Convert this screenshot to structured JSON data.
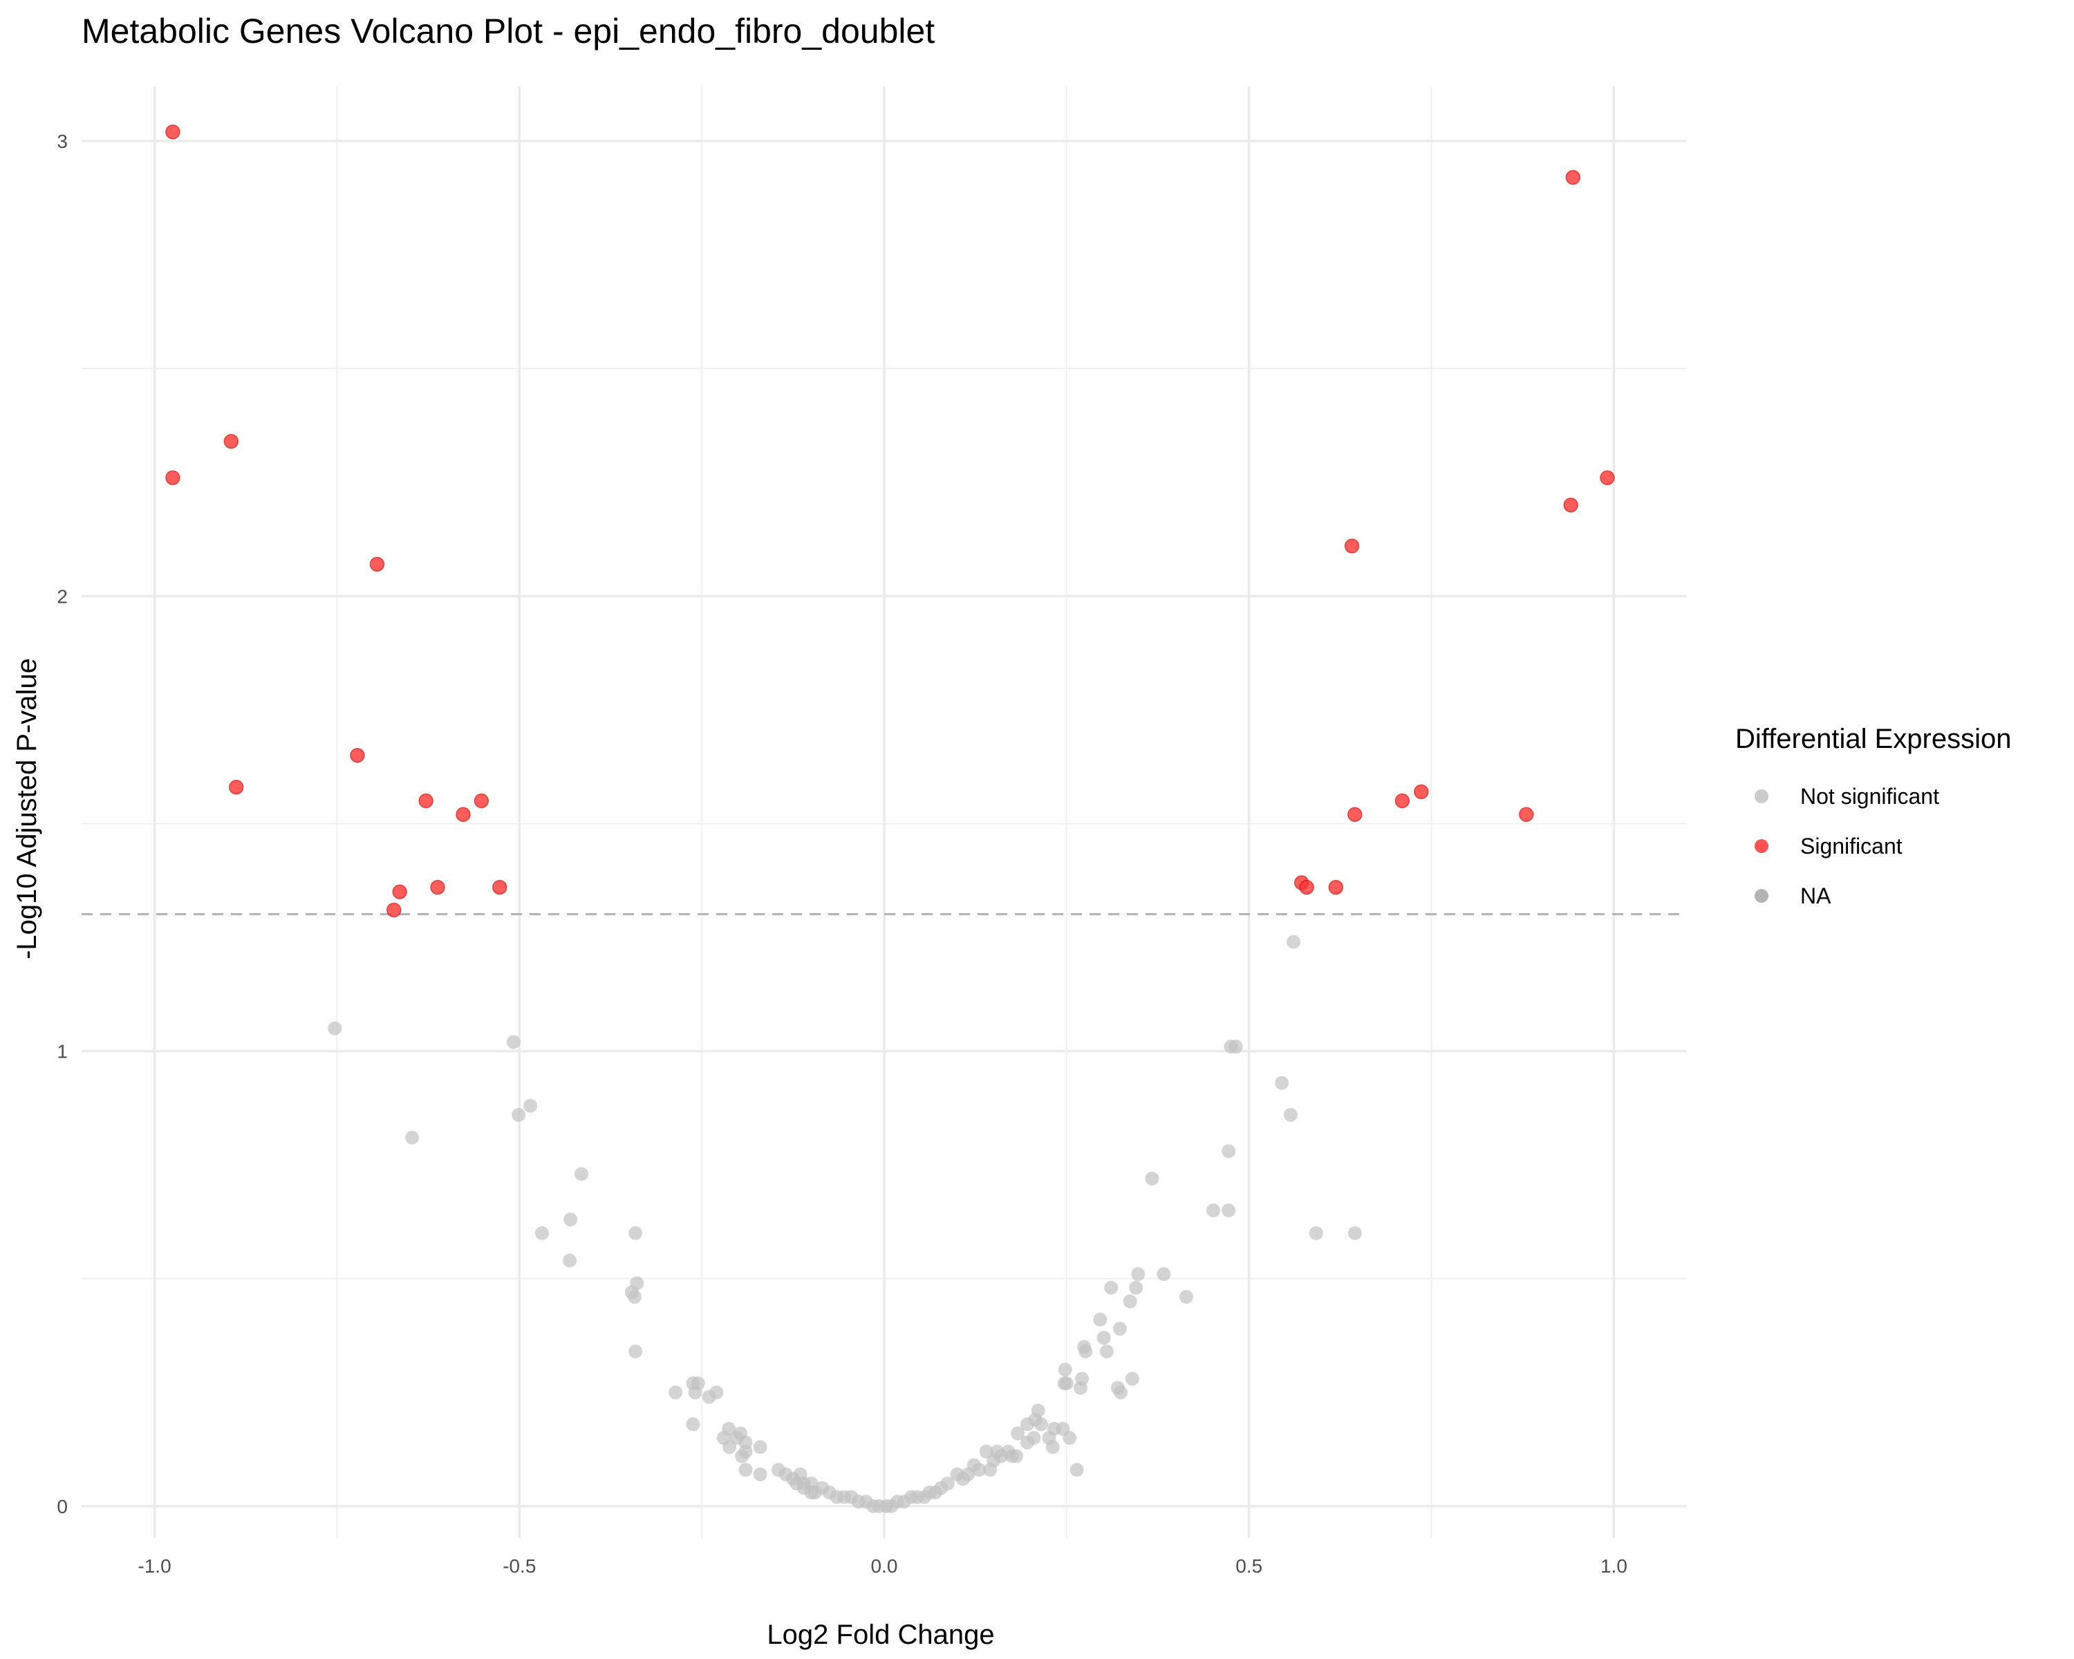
{
  "chart_data": {
    "type": "scatter",
    "title": "Metabolic Genes Volcano Plot - epi_endo_fibro_doublet",
    "xlabel": "Log2 Fold Change",
    "ylabel": "-Log10 Adjusted P-value",
    "xlim": [
      -1.1,
      1.1
    ],
    "ylim": [
      -0.07,
      3.12
    ],
    "x_ticks": [
      {
        "value": -1.0,
        "label": "-1.0"
      },
      {
        "value": -0.5,
        "label": "-0.5"
      },
      {
        "value": 0.0,
        "label": "0.0"
      },
      {
        "value": 0.5,
        "label": "0.5"
      },
      {
        "value": 1.0,
        "label": "1.0"
      }
    ],
    "y_ticks": [
      {
        "value": 0,
        "label": "0"
      },
      {
        "value": 1,
        "label": "1"
      },
      {
        "value": 2,
        "label": "2"
      },
      {
        "value": 3,
        "label": "3"
      }
    ],
    "grid": true,
    "threshold_line": {
      "y": 1.301,
      "style": "dashed",
      "color": "#b3b3b3"
    },
    "legend": {
      "title": "Differential Expression",
      "placement": "right",
      "entries": [
        {
          "label": "Not significant",
          "color": "#c2c2c2"
        },
        {
          "label": "Significant",
          "color": "#ff3333"
        },
        {
          "label": "NA",
          "color": "#a6a6a6"
        }
      ]
    },
    "series": [
      {
        "name": "Significant",
        "color": "#ff3333",
        "points": [
          {
            "x": -0.975,
            "y": 3.02
          },
          {
            "x": -0.975,
            "y": 2.26
          },
          {
            "x": -0.895,
            "y": 2.34
          },
          {
            "x": -0.888,
            "y": 1.58
          },
          {
            "x": -0.695,
            "y": 2.07
          },
          {
            "x": -0.722,
            "y": 1.65
          },
          {
            "x": -0.628,
            "y": 1.55
          },
          {
            "x": -0.577,
            "y": 1.52
          },
          {
            "x": -0.552,
            "y": 1.55
          },
          {
            "x": -0.612,
            "y": 1.36
          },
          {
            "x": -0.527,
            "y": 1.36
          },
          {
            "x": -0.664,
            "y": 1.35
          },
          {
            "x": -0.672,
            "y": 1.31
          },
          {
            "x": 0.944,
            "y": 2.92
          },
          {
            "x": 0.991,
            "y": 2.26
          },
          {
            "x": 0.941,
            "y": 2.2
          },
          {
            "x": 0.641,
            "y": 2.11
          },
          {
            "x": 0.736,
            "y": 1.57
          },
          {
            "x": 0.71,
            "y": 1.55
          },
          {
            "x": 0.645,
            "y": 1.52
          },
          {
            "x": 0.88,
            "y": 1.52
          },
          {
            "x": 0.572,
            "y": 1.37
          },
          {
            "x": 0.579,
            "y": 1.36
          },
          {
            "x": 0.619,
            "y": 1.36
          }
        ]
      },
      {
        "name": "Not significant",
        "color": "#c2c2c2",
        "points": [
          {
            "x": -0.753,
            "y": 1.05
          },
          {
            "x": -0.647,
            "y": 0.81
          },
          {
            "x": -0.508,
            "y": 1.02
          },
          {
            "x": -0.501,
            "y": 0.86
          },
          {
            "x": -0.485,
            "y": 0.88
          },
          {
            "x": -0.415,
            "y": 0.73
          },
          {
            "x": -0.43,
            "y": 0.63
          },
          {
            "x": -0.469,
            "y": 0.6
          },
          {
            "x": -0.431,
            "y": 0.54
          },
          {
            "x": -0.341,
            "y": 0.6
          },
          {
            "x": -0.339,
            "y": 0.49
          },
          {
            "x": -0.346,
            "y": 0.47
          },
          {
            "x": -0.342,
            "y": 0.46
          },
          {
            "x": -0.341,
            "y": 0.34
          },
          {
            "x": 0.561,
            "y": 1.24
          },
          {
            "x": 0.475,
            "y": 1.01
          },
          {
            "x": 0.482,
            "y": 1.01
          },
          {
            "x": 0.545,
            "y": 0.93
          },
          {
            "x": 0.557,
            "y": 0.86
          },
          {
            "x": 0.472,
            "y": 0.78
          },
          {
            "x": 0.367,
            "y": 0.72
          },
          {
            "x": 0.451,
            "y": 0.65
          },
          {
            "x": 0.472,
            "y": 0.65
          },
          {
            "x": 0.592,
            "y": 0.6
          },
          {
            "x": 0.645,
            "y": 0.6
          },
          {
            "x": 0.383,
            "y": 0.51
          },
          {
            "x": 0.348,
            "y": 0.51
          },
          {
            "x": 0.345,
            "y": 0.48
          },
          {
            "x": 0.311,
            "y": 0.48
          },
          {
            "x": 0.414,
            "y": 0.46
          },
          {
            "x": 0.337,
            "y": 0.45
          },
          {
            "x": 0.296,
            "y": 0.41
          },
          {
            "x": 0.323,
            "y": 0.39
          },
          {
            "x": 0.301,
            "y": 0.37
          },
          {
            "x": 0.274,
            "y": 0.35
          },
          {
            "x": 0.276,
            "y": 0.34
          },
          {
            "x": 0.305,
            "y": 0.34
          },
          {
            "x": 0.248,
            "y": 0.3
          },
          {
            "x": 0.34,
            "y": 0.28
          },
          {
            "x": 0.271,
            "y": 0.28
          },
          {
            "x": 0.247,
            "y": 0.27
          },
          {
            "x": 0.25,
            "y": 0.27
          },
          {
            "x": 0.269,
            "y": 0.26
          },
          {
            "x": 0.32,
            "y": 0.26
          },
          {
            "x": 0.324,
            "y": 0.25
          },
          {
            "x": 0.211,
            "y": 0.21
          },
          {
            "x": 0.207,
            "y": 0.19
          },
          {
            "x": 0.196,
            "y": 0.18
          },
          {
            "x": 0.215,
            "y": 0.18
          },
          {
            "x": 0.233,
            "y": 0.17
          },
          {
            "x": 0.245,
            "y": 0.17
          },
          {
            "x": 0.183,
            "y": 0.16
          },
          {
            "x": 0.205,
            "y": 0.15
          },
          {
            "x": 0.226,
            "y": 0.15
          },
          {
            "x": 0.254,
            "y": 0.15
          },
          {
            "x": 0.196,
            "y": 0.14
          },
          {
            "x": 0.231,
            "y": 0.13
          },
          {
            "x": 0.17,
            "y": 0.12
          },
          {
            "x": 0.155,
            "y": 0.12
          },
          {
            "x": 0.14,
            "y": 0.12
          },
          {
            "x": 0.16,
            "y": 0.11
          },
          {
            "x": 0.181,
            "y": 0.11
          },
          {
            "x": 0.175,
            "y": 0.11
          },
          {
            "x": 0.15,
            "y": 0.1
          },
          {
            "x": 0.123,
            "y": 0.09
          },
          {
            "x": 0.13,
            "y": 0.08
          },
          {
            "x": 0.145,
            "y": 0.08
          },
          {
            "x": 0.264,
            "y": 0.08
          },
          {
            "x": 0.115,
            "y": 0.07
          },
          {
            "x": 0.1,
            "y": 0.07
          },
          {
            "x": 0.108,
            "y": 0.06
          },
          {
            "x": 0.087,
            "y": 0.05
          },
          {
            "x": 0.078,
            "y": 0.04
          },
          {
            "x": 0.07,
            "y": 0.03
          },
          {
            "x": 0.062,
            "y": 0.03
          },
          {
            "x": 0.055,
            "y": 0.02
          },
          {
            "x": 0.045,
            "y": 0.02
          },
          {
            "x": 0.037,
            "y": 0.02
          },
          {
            "x": 0.027,
            "y": 0.01
          },
          {
            "x": 0.018,
            "y": 0.01
          },
          {
            "x": 0.01,
            "y": 0.0
          },
          {
            "x": 0.003,
            "y": 0.0
          },
          {
            "x": -0.286,
            "y": 0.25
          },
          {
            "x": -0.262,
            "y": 0.27
          },
          {
            "x": -0.255,
            "y": 0.27
          },
          {
            "x": -0.259,
            "y": 0.25
          },
          {
            "x": -0.24,
            "y": 0.24
          },
          {
            "x": -0.23,
            "y": 0.25
          },
          {
            "x": -0.262,
            "y": 0.18
          },
          {
            "x": -0.213,
            "y": 0.17
          },
          {
            "x": -0.22,
            "y": 0.15
          },
          {
            "x": -0.202,
            "y": 0.15
          },
          {
            "x": -0.197,
            "y": 0.16
          },
          {
            "x": -0.19,
            "y": 0.14
          },
          {
            "x": -0.17,
            "y": 0.13
          },
          {
            "x": -0.212,
            "y": 0.13
          },
          {
            "x": -0.19,
            "y": 0.12
          },
          {
            "x": -0.195,
            "y": 0.11
          },
          {
            "x": -0.19,
            "y": 0.08
          },
          {
            "x": -0.17,
            "y": 0.07
          },
          {
            "x": -0.145,
            "y": 0.08
          },
          {
            "x": -0.135,
            "y": 0.07
          },
          {
            "x": -0.115,
            "y": 0.07
          },
          {
            "x": -0.125,
            "y": 0.06
          },
          {
            "x": -0.11,
            "y": 0.05
          },
          {
            "x": -0.1,
            "y": 0.05
          },
          {
            "x": -0.12,
            "y": 0.05
          },
          {
            "x": -0.11,
            "y": 0.04
          },
          {
            "x": -0.1,
            "y": 0.03
          },
          {
            "x": -0.095,
            "y": 0.03
          },
          {
            "x": -0.085,
            "y": 0.04
          },
          {
            "x": -0.075,
            "y": 0.03
          },
          {
            "x": -0.065,
            "y": 0.02
          },
          {
            "x": -0.055,
            "y": 0.02
          },
          {
            "x": -0.045,
            "y": 0.02
          },
          {
            "x": -0.035,
            "y": 0.01
          },
          {
            "x": -0.025,
            "y": 0.01
          },
          {
            "x": -0.015,
            "y": 0.0
          },
          {
            "x": -0.007,
            "y": 0.0
          }
        ]
      }
    ]
  }
}
